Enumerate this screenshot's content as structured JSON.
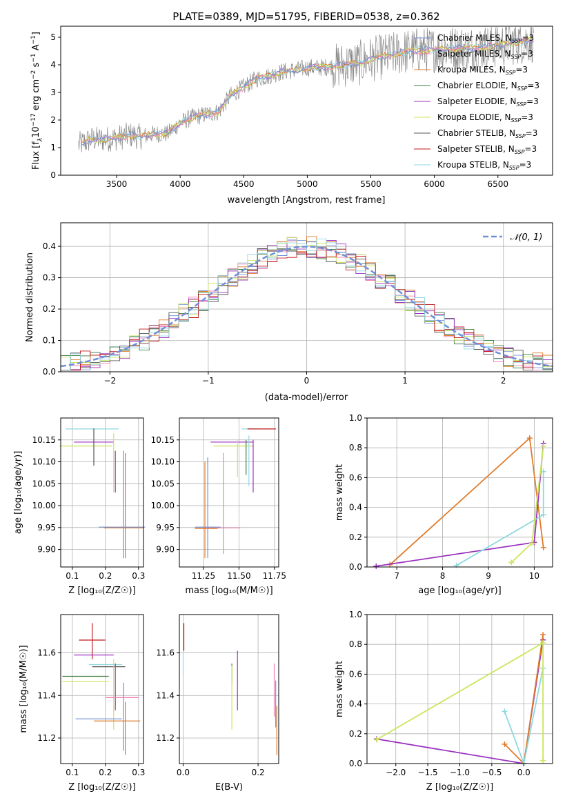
{
  "figure_title": "PLATE=0389, MJD=51795, FIBERID=0538, z=0.362",
  "colors": {
    "chabrier_miles": "#6f8fd6",
    "salpeter_miles": "#f07fb4",
    "kroupa_miles": "#e07b2a",
    "chabrier_elodie": "#3d7a3d",
    "salpeter_elodie": "#9b30c0",
    "kroupa_elodie": "#c9e65a",
    "chabrier_stelib": "#555555",
    "salpeter_stelib": "#c01818",
    "kroupa_stelib": "#8fd8e0",
    "gaussian": "#6f8fd6"
  },
  "chart_data": [
    {
      "id": "spectrum",
      "type": "line",
      "title": "PLATE=0389, MJD=51795, FIBERID=0538, z=0.362",
      "xlabel": "wavelength [Angstrom, rest frame]",
      "ylabel": "Flux [f_λ 10⁻¹⁷ erg cm⁻² s⁻¹ A⁻¹]",
      "xlim": [
        3060,
        6930
      ],
      "ylim": [
        0,
        5.4
      ],
      "xticks": [
        "3500",
        "4000",
        "4500",
        "5000",
        "5500",
        "6000",
        "6500"
      ],
      "yticks": [
        "0",
        "1",
        "2",
        "3",
        "4",
        "5"
      ],
      "grid": false,
      "legend_position": "right",
      "legend": [
        {
          "label": "Chabrier MILES, N",
          "sub": "SSP",
          "tail": "=3",
          "key": "chabrier_miles"
        },
        {
          "label": "Salpeter MILES, N",
          "sub": "SSP",
          "tail": "=3",
          "key": "salpeter_miles"
        },
        {
          "label": "Kroupa MILES, N",
          "sub": "SSP",
          "tail": "=3",
          "key": "kroupa_miles"
        },
        {
          "label": "Chabrier ELODIE, N",
          "sub": "SSP",
          "tail": "=3",
          "key": "chabrier_elodie"
        },
        {
          "label": "Salpeter ELODIE, N",
          "sub": "SSP",
          "tail": "=3",
          "key": "salpeter_elodie"
        },
        {
          "label": "Kroupa ELODIE, N",
          "sub": "SSP",
          "tail": "=3",
          "key": "kroupa_elodie"
        },
        {
          "label": "Chabrier STELIB, N",
          "sub": "SSP",
          "tail": "=3",
          "key": "chabrier_stelib"
        },
        {
          "label": "Salpeter STELIB, N",
          "sub": "SSP",
          "tail": "=3",
          "key": "salpeter_stelib"
        },
        {
          "label": "Kroupa STELIB, N",
          "sub": "SSP",
          "tail": "=3",
          "key": "kroupa_stelib"
        }
      ],
      "model_continuum": {
        "x": [
          3200,
          3300,
          3400,
          3500,
          3600,
          3700,
          3800,
          3900,
          4000,
          4100,
          4200,
          4300,
          4400,
          4500,
          4600,
          4700,
          4800,
          4900,
          5000,
          5100,
          5200,
          5300,
          5400,
          5500,
          5600,
          5700,
          5800,
          5900,
          6000,
          6100,
          6200,
          6300,
          6400,
          6500,
          6600,
          6700,
          6780
        ],
        "y": [
          1.1,
          1.3,
          1.3,
          1.35,
          1.45,
          1.4,
          1.5,
          1.5,
          1.9,
          2.1,
          2.2,
          2.3,
          2.9,
          3.2,
          3.5,
          3.6,
          3.75,
          3.8,
          3.9,
          3.9,
          3.95,
          4.0,
          4.05,
          4.2,
          4.3,
          4.4,
          4.5,
          4.55,
          4.55,
          4.6,
          4.6,
          4.6,
          4.65,
          4.7,
          4.8,
          4.85,
          4.9
        ]
      }
    },
    {
      "id": "residuals",
      "type": "line",
      "xlabel": "(data-model)/error",
      "ylabel": "Normed distribution",
      "xlim": [
        -2.5,
        2.5
      ],
      "ylim": [
        0,
        0.475
      ],
      "xticks": [
        "−2",
        "−1",
        "0",
        "1",
        "2"
      ],
      "yticks": [
        "0.0",
        "0.1",
        "0.2",
        "0.3",
        "0.4"
      ],
      "grid": true,
      "legend_position": "top-right",
      "legend_label": "𝒩(0, 1)",
      "histogram_bin_width": 0.1
    },
    {
      "id": "age_vs_Z",
      "type": "scatter",
      "xlabel": "Z [log₁₀(Z/Z☉)]",
      "ylabel": "age  [log₁₀(age/yr)]",
      "xlim": [
        0.065,
        0.315
      ],
      "ylim": [
        9.86,
        10.2
      ],
      "xticks": [
        "0.1",
        "0.2",
        "0.3"
      ],
      "yticks": [
        "9.90",
        "9.95",
        "10.00",
        "10.05",
        "10.10",
        "10.15"
      ],
      "grid": true,
      "points": [
        {
          "x": 0.16,
          "xerr": 0.08,
          "y": 10.175,
          "yerr_lo": 0.0,
          "yerr_hi": 0.0,
          "key": "kroupa_stelib"
        },
        {
          "x": 0.165,
          "xerr": 0.06,
          "y": 10.145,
          "yerr_lo": 0.0,
          "yerr_hi": 0.0,
          "key": "salpeter_elodie"
        },
        {
          "x": 0.14,
          "xerr": 0.08,
          "y": 10.136,
          "yerr_lo": 0.0,
          "yerr_hi": 0.0,
          "key": "kroupa_elodie"
        },
        {
          "x": 0.165,
          "xerr": 0.0,
          "y": 10.136,
          "yerr_lo": 0.045,
          "yerr_hi": 0.04,
          "key": "chabrier_stelib"
        },
        {
          "x": 0.225,
          "xerr": 0.0,
          "y": 10.09,
          "yerr_lo": 0.06,
          "yerr_hi": 0.075,
          "key": "kroupa_elodie"
        },
        {
          "x": 0.23,
          "xerr": 0.0,
          "y": 10.085,
          "yerr_lo": 0.055,
          "yerr_hi": 0.04,
          "key": "salpeter_elodie"
        },
        {
          "x": 0.255,
          "xerr": 0.0,
          "y": 10.0,
          "yerr_lo": 0.12,
          "yerr_hi": 0.125,
          "key": "chabrier_miles"
        },
        {
          "x": 0.26,
          "xerr": 0.0,
          "y": 10.0,
          "yerr_lo": 0.12,
          "yerr_hi": 0.12,
          "key": "kroupa_miles"
        },
        {
          "x": 0.25,
          "xerr": 0.07,
          "y": 9.951,
          "yerr_lo": 0.0,
          "yerr_hi": 0.0,
          "key": "chabrier_miles"
        },
        {
          "x": 0.255,
          "xerr": 0.06,
          "y": 9.949,
          "yerr_lo": 0.0,
          "yerr_hi": 0.0,
          "key": "kroupa_miles"
        }
      ]
    },
    {
      "id": "age_vs_mass",
      "type": "scatter",
      "xlabel": "mass [log₁₀(M/M☉)]",
      "xlim": [
        11.08,
        11.78
      ],
      "ylim": [
        9.86,
        10.2
      ],
      "xticks": [
        "11.25",
        "11.50",
        "11.75"
      ],
      "yticks": [
        "9.90",
        "9.95",
        "10.00",
        "10.05",
        "10.10",
        "10.15"
      ],
      "grid": true,
      "points": [
        {
          "x": 11.58,
          "xerr": 0.06,
          "y": 10.175,
          "yerr_lo": 0.0,
          "yerr_hi": 0.0,
          "key": "kroupa_stelib"
        },
        {
          "x": 11.66,
          "xerr": 0.1,
          "y": 10.175,
          "yerr_lo": 0.0,
          "yerr_hi": 0.0,
          "key": "salpeter_stelib"
        },
        {
          "x": 11.45,
          "xerr": 0.15,
          "y": 10.145,
          "yerr_lo": 0.0,
          "yerr_hi": 0.0,
          "key": "salpeter_elodie"
        },
        {
          "x": 11.46,
          "xerr": 0.14,
          "y": 10.136,
          "yerr_lo": 0.0,
          "yerr_hi": 0.0,
          "key": "kroupa_elodie"
        },
        {
          "x": 11.49,
          "xerr": 0.0,
          "y": 10.12,
          "yerr_lo": 0.055,
          "yerr_hi": 0.03,
          "key": "kroupa_elodie"
        },
        {
          "x": 11.55,
          "xerr": 0.0,
          "y": 10.12,
          "yerr_lo": 0.05,
          "yerr_hi": 0.03,
          "key": "chabrier_elodie"
        },
        {
          "x": 11.57,
          "xerr": 0.0,
          "y": 10.1,
          "yerr_lo": 0.055,
          "yerr_hi": 0.06,
          "key": "kroupa_stelib"
        },
        {
          "x": 11.6,
          "xerr": 0.0,
          "y": 10.12,
          "yerr_lo": 0.09,
          "yerr_hi": 0.03,
          "key": "salpeter_elodie"
        },
        {
          "x": 11.28,
          "xerr": 0.0,
          "y": 10.0,
          "yerr_lo": 0.12,
          "yerr_hi": 0.11,
          "key": "chabrier_miles"
        },
        {
          "x": 11.26,
          "xerr": 0.0,
          "y": 10.0,
          "yerr_lo": 0.12,
          "yerr_hi": 0.1,
          "key": "kroupa_miles"
        },
        {
          "x": 11.39,
          "xerr": 0.0,
          "y": 10.0,
          "yerr_lo": 0.11,
          "yerr_hi": 0.12,
          "key": "salpeter_miles"
        },
        {
          "x": 11.28,
          "xerr": 0.09,
          "y": 9.951,
          "yerr_lo": 0.0,
          "yerr_hi": 0.0,
          "key": "chabrier_miles"
        },
        {
          "x": 11.38,
          "xerr": 0.13,
          "y": 9.949,
          "yerr_lo": 0.0,
          "yerr_hi": 0.0,
          "key": "salpeter_miles"
        },
        {
          "x": 11.27,
          "xerr": 0.08,
          "y": 9.948,
          "yerr_lo": 0.0,
          "yerr_hi": 0.0,
          "key": "kroupa_miles"
        }
      ]
    },
    {
      "id": "weight_vs_age",
      "type": "line",
      "xlabel": "age  [log₁₀(age/yr)]",
      "ylabel": "mass weight",
      "xlim": [
        6.35,
        10.4
      ],
      "ylim": [
        0,
        1.0
      ],
      "xticks": [
        "7",
        "8",
        "9",
        "10"
      ],
      "yticks": [
        "0.0",
        "0.2",
        "0.4",
        "0.6",
        "0.8",
        "1.0"
      ],
      "grid": true,
      "series": [
        {
          "key": "kroupa_miles",
          "x": [
            6.85,
            9.9,
            10.2
          ],
          "y": [
            0.015,
            0.865,
            0.13
          ]
        },
        {
          "key": "salpeter_elodie",
          "x": [
            6.55,
            10.0,
            10.2
          ],
          "y": [
            0.005,
            0.165,
            0.83
          ]
        },
        {
          "key": "kroupa_stelib",
          "x": [
            8.3,
            10.2,
            10.2
          ],
          "y": [
            0.01,
            0.35,
            0.64
          ]
        },
        {
          "key": "kroupa_elodie",
          "x": [
            9.5,
            9.95,
            10.2
          ],
          "y": [
            0.03,
            0.16,
            0.81
          ]
        }
      ]
    },
    {
      "id": "mass_vs_Z",
      "type": "scatter",
      "xlabel": "Z [log₁₀(Z/Z☉)]",
      "ylabel": "mass [log₁₀(M/M☉)]",
      "xlim": [
        0.065,
        0.315
      ],
      "ylim": [
        11.08,
        11.78
      ],
      "xticks": [
        "0.1",
        "0.2",
        "0.3"
      ],
      "yticks": [
        "11.2",
        "11.4",
        "11.6"
      ],
      "grid": true,
      "points": [
        {
          "x": 0.16,
          "xerr": 0.04,
          "y": 11.66,
          "yerr_lo": 0.09,
          "yerr_hi": 0.08,
          "key": "salpeter_stelib"
        },
        {
          "x": 0.165,
          "xerr": 0.06,
          "y": 11.59,
          "yerr_lo": 0.0,
          "yerr_hi": 0.0,
          "key": "salpeter_elodie"
        },
        {
          "x": 0.2,
          "xerr": 0.05,
          "y": 11.545,
          "yerr_lo": 0.0,
          "yerr_hi": 0.0,
          "key": "kroupa_stelib"
        },
        {
          "x": 0.21,
          "xerr": 0.05,
          "y": 11.535,
          "yerr_lo": 0.0,
          "yerr_hi": 0.0,
          "key": "chabrier_stelib"
        },
        {
          "x": 0.14,
          "xerr": 0.07,
          "y": 11.49,
          "yerr_lo": 0.0,
          "yerr_hi": 0.0,
          "key": "chabrier_elodie"
        },
        {
          "x": 0.14,
          "xerr": 0.07,
          "y": 11.465,
          "yerr_lo": 0.0,
          "yerr_hi": 0.0,
          "key": "kroupa_elodie"
        },
        {
          "x": 0.225,
          "xerr": 0.0,
          "y": 11.4,
          "yerr_lo": 0.16,
          "yerr_hi": 0.17,
          "key": "kroupa_elodie"
        },
        {
          "x": 0.23,
          "xerr": 0.0,
          "y": 11.42,
          "yerr_lo": 0.09,
          "yerr_hi": 0.13,
          "key": "salpeter_elodie"
        },
        {
          "x": 0.255,
          "xerr": 0.0,
          "y": 11.3,
          "yerr_lo": 0.16,
          "yerr_hi": 0.16,
          "key": "chabrier_miles"
        },
        {
          "x": 0.26,
          "xerr": 0.0,
          "y": 11.28,
          "yerr_lo": 0.16,
          "yerr_hi": 0.09,
          "key": "kroupa_miles"
        },
        {
          "x": 0.25,
          "xerr": 0.05,
          "y": 11.39,
          "yerr_lo": 0.0,
          "yerr_hi": 0.0,
          "key": "salpeter_miles"
        },
        {
          "x": 0.18,
          "xerr": 0.07,
          "y": 11.29,
          "yerr_lo": 0.0,
          "yerr_hi": 0.0,
          "key": "chabrier_miles"
        },
        {
          "x": 0.235,
          "xerr": 0.07,
          "y": 11.28,
          "yerr_lo": 0.0,
          "yerr_hi": 0.0,
          "key": "kroupa_miles"
        }
      ]
    },
    {
      "id": "mass_vs_EBV",
      "type": "scatter",
      "xlabel": "E(B-V)",
      "xlim": [
        -0.01,
        0.255
      ],
      "ylim": [
        11.08,
        11.78
      ],
      "xticks": [
        "0.0",
        "0.2"
      ],
      "yticks": [
        "11.2",
        "11.4",
        "11.6"
      ],
      "grid": true,
      "points": [
        {
          "x": 0.002,
          "xerr": 0.0,
          "y": 11.66,
          "yerr_lo": 0.05,
          "yerr_hi": 0.08,
          "key": "salpeter_stelib"
        },
        {
          "x": 0.0,
          "xerr": 0.0,
          "y": 11.55,
          "yerr_lo": 0.05,
          "yerr_hi": 0.05,
          "key": "kroupa_stelib"
        },
        {
          "x": 0.13,
          "xerr": 0.0,
          "y": 11.53,
          "yerr_lo": 0.07,
          "yerr_hi": 0.02,
          "key": "chabrier_elodie"
        },
        {
          "x": 0.13,
          "xerr": 0.0,
          "y": 11.4,
          "yerr_lo": 0.16,
          "yerr_hi": 0.14,
          "key": "kroupa_elodie"
        },
        {
          "x": 0.145,
          "xerr": 0.0,
          "y": 11.47,
          "yerr_lo": 0.14,
          "yerr_hi": 0.14,
          "key": "salpeter_elodie"
        },
        {
          "x": 0.243,
          "xerr": 0.0,
          "y": 11.42,
          "yerr_lo": 0.12,
          "yerr_hi": 0.13,
          "key": "salpeter_miles"
        },
        {
          "x": 0.247,
          "xerr": 0.0,
          "y": 11.37,
          "yerr_lo": 0.12,
          "yerr_hi": 0.1,
          "key": "chabrier_miles"
        },
        {
          "x": 0.25,
          "xerr": 0.0,
          "y": 11.25,
          "yerr_lo": 0.13,
          "yerr_hi": 0.1,
          "key": "kroupa_miles"
        }
      ]
    },
    {
      "id": "weight_vs_Z",
      "type": "line",
      "xlabel": "Z [log₁₀(Z/Z☉)]",
      "ylabel": "mass weight",
      "xlim": [
        -2.45,
        0.45
      ],
      "ylim": [
        0,
        1.0
      ],
      "xticks": [
        "−2.0",
        "−1.5",
        "−1.0",
        "−0.5",
        "0.0"
      ],
      "yticks": [
        "0.0",
        "0.2",
        "0.4",
        "0.6",
        "0.8",
        "1.0"
      ],
      "grid": true,
      "series": [
        {
          "key": "salpeter_elodie",
          "x": [
            -2.3,
            0.0,
            0.3
          ],
          "y": [
            0.165,
            0.0,
            0.83
          ]
        },
        {
          "key": "kroupa_miles",
          "x": [
            -0.3,
            0.0,
            0.3
          ],
          "y": [
            0.13,
            0.0,
            0.865
          ]
        },
        {
          "key": "kroupa_stelib",
          "x": [
            -0.3,
            0.0,
            0.3
          ],
          "y": [
            0.35,
            0.0,
            0.64
          ]
        },
        {
          "key": "kroupa_elodie",
          "x": [
            -2.3,
            0.3,
            0.3
          ],
          "y": [
            0.16,
            0.81,
            0.02
          ]
        }
      ]
    }
  ]
}
